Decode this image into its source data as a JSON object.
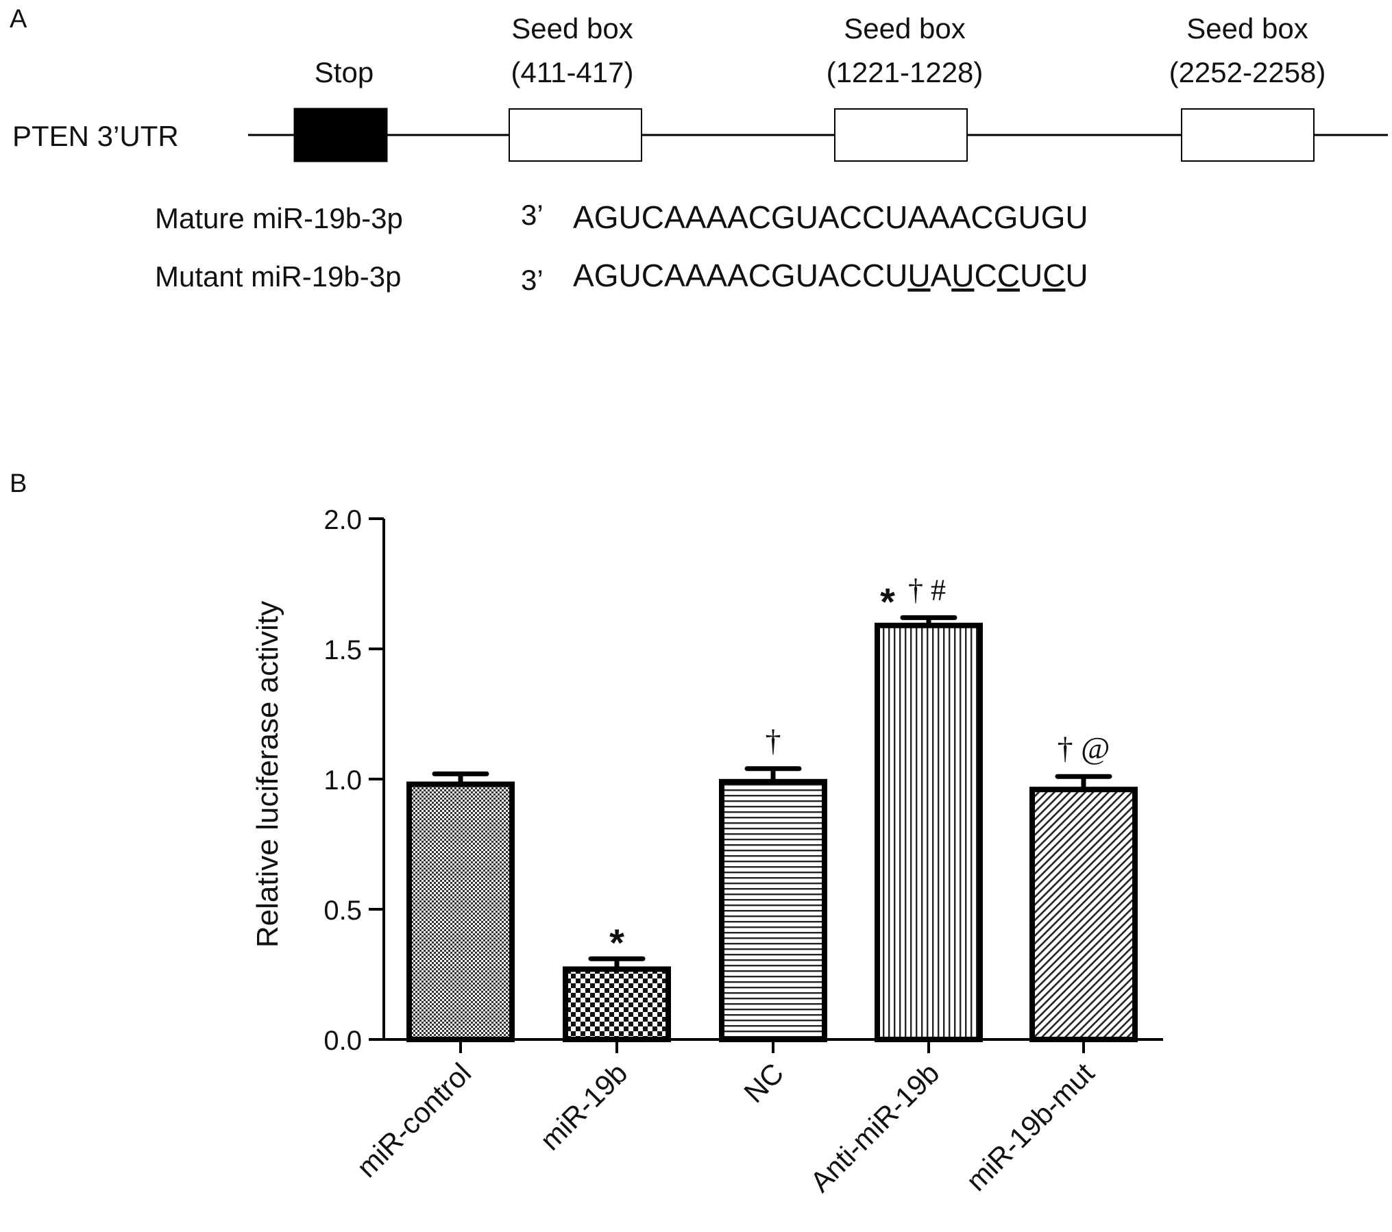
{
  "panel_a": {
    "label": "A",
    "gene_label": "PTEN 3’UTR",
    "stop_label": "Stop",
    "seed_boxes": [
      {
        "title": "Seed box",
        "range": "(411-417)"
      },
      {
        "title": "Seed box",
        "range": "(1221-1228)"
      },
      {
        "title": "Seed box",
        "range": "(2252-2258)"
      }
    ],
    "sequences": [
      {
        "name": "Mature miR-19b-3p",
        "end": "3’",
        "seq": "AGUCAAAACGUACCUAAACGUGU",
        "underlined": []
      },
      {
        "name": "Mutant miR-19b-3p",
        "end": "3’",
        "seq": "AGUCAAAACGUACCUUAUCCUCU",
        "underlined": [
          15,
          17,
          19,
          21
        ]
      }
    ]
  },
  "panel_b": {
    "label": "B"
  },
  "chart_data": {
    "type": "bar",
    "categories": [
      "miR-control",
      "miR-19b",
      "NC",
      "Anti-miR-19b",
      "miR-19b-mut"
    ],
    "values": [
      0.98,
      0.27,
      0.99,
      1.59,
      0.96
    ],
    "errors": [
      0.04,
      0.04,
      0.05,
      0.03,
      0.05
    ],
    "annotations": [
      {
        "bold_star": "",
        "symbols": ""
      },
      {
        "bold_star": "*",
        "symbols": ""
      },
      {
        "bold_star": "",
        "symbols": "†"
      },
      {
        "bold_star": "*",
        "symbols": "† #"
      },
      {
        "bold_star": "",
        "symbols": "† @"
      }
    ],
    "patterns": [
      "fine-check",
      "checkerboard",
      "horizontal-lines",
      "vertical-lines",
      "diagonal-lines"
    ],
    "ylabel": "Relative luciferase activity",
    "xlabel": "",
    "title": "",
    "ylim": [
      0,
      2.0
    ],
    "yticks": [
      "0.0",
      "0.5",
      "1.0",
      "1.5",
      "2.0"
    ],
    "grid": false,
    "colors": {
      "bar_edge": "#000000",
      "fill": "#ffffff",
      "pattern": "#222222"
    }
  }
}
